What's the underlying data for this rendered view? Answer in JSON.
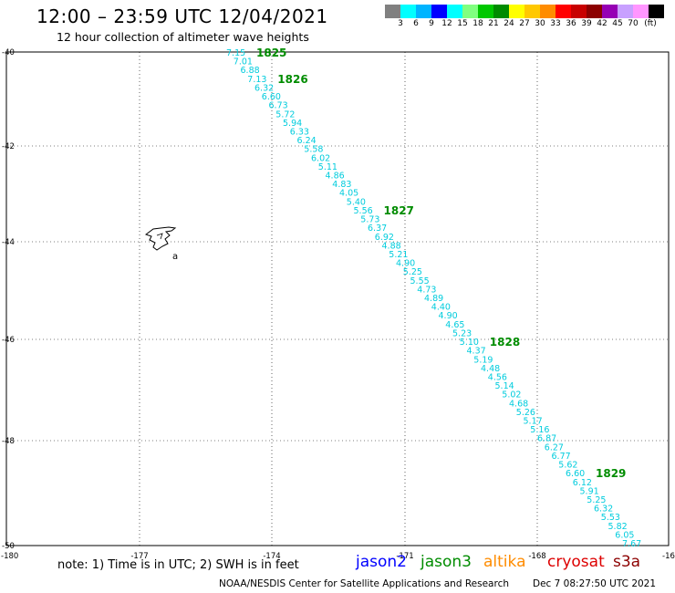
{
  "header": {
    "title": "12:00 – 23:59 UTC 12/04/2021",
    "subtitle": "12 hour collection of altimeter wave heights"
  },
  "legend": {
    "unit": "(ft)",
    "colors": [
      "#808080",
      "#00ffff",
      "#00b4ff",
      "#0000ff",
      "#00ffff",
      "#80ff80",
      "#00c800",
      "#008c00",
      "#ffff00",
      "#ffc800",
      "#ff8c00",
      "#ff0000",
      "#c80000",
      "#8c0000",
      "#9600b4",
      "#c8a0ff",
      "#ff96ff",
      "#000000"
    ],
    "ticks": [
      "3",
      "6",
      "9",
      "12",
      "15",
      "18",
      "21",
      "24",
      "27",
      "30",
      "33",
      "36",
      "39",
      "42",
      "45",
      "70"
    ]
  },
  "map": {
    "x_ticks": [
      "-177",
      "-174",
      "-171",
      "-168"
    ],
    "x_edge_labels": [
      "-180",
      "-16"
    ],
    "y_ticks": [
      "-40",
      "-42",
      "-44",
      "-46",
      "-48",
      "-50"
    ],
    "island_label": "a"
  },
  "track": {
    "color": "#00ccdd",
    "values": [
      "7.15",
      "7.01",
      "6.88",
      "7.13",
      "6.32",
      "6.60",
      "6.73",
      "5.72",
      "5.94",
      "6.33",
      "6.24",
      "5.58",
      "6.02",
      "5.11",
      "4.86",
      "4.83",
      "4.05",
      "5.40",
      "5.56",
      "5.73",
      "6.37",
      "6.92",
      "4.88",
      "5.21",
      "4.90",
      "5.25",
      "5.55",
      "4.73",
      "4.89",
      "4.40",
      "4.90",
      "4.65",
      "5.23",
      "5.10",
      "4.37",
      "5.19",
      "4.48",
      "4.56",
      "5.14",
      "5.02",
      "4.68",
      "5.26",
      "5.17",
      "5.16",
      "6.87",
      "6.27",
      "6.77",
      "5.62",
      "6.60",
      "6.12",
      "5.91",
      "5.25",
      "6.32",
      "5.53",
      "5.82",
      "6.05",
      "7.67"
    ],
    "time_labels": [
      {
        "text": "1825",
        "index": 0
      },
      {
        "text": "1826",
        "index": 3
      },
      {
        "text": "1827",
        "index": 18
      },
      {
        "text": "1828",
        "index": 33
      },
      {
        "text": "1829",
        "index": 48
      }
    ]
  },
  "footer": {
    "note": "note:  1) Time is in UTC;  2) SWH is in feet",
    "satellites": [
      {
        "name": "jason2",
        "color": "#0000ff"
      },
      {
        "name": "jason3",
        "color": "#008c00"
      },
      {
        "name": "altika",
        "color": "#ff8c00"
      },
      {
        "name": "cryosat",
        "color": "#dd0000"
      },
      {
        "name": "s3a",
        "color": "#8c0000"
      }
    ],
    "credit": "NOAA/NESDIS Center for Satellite Applications and Research",
    "timestamp": "Dec  7 08:27:50 UTC 2021"
  }
}
